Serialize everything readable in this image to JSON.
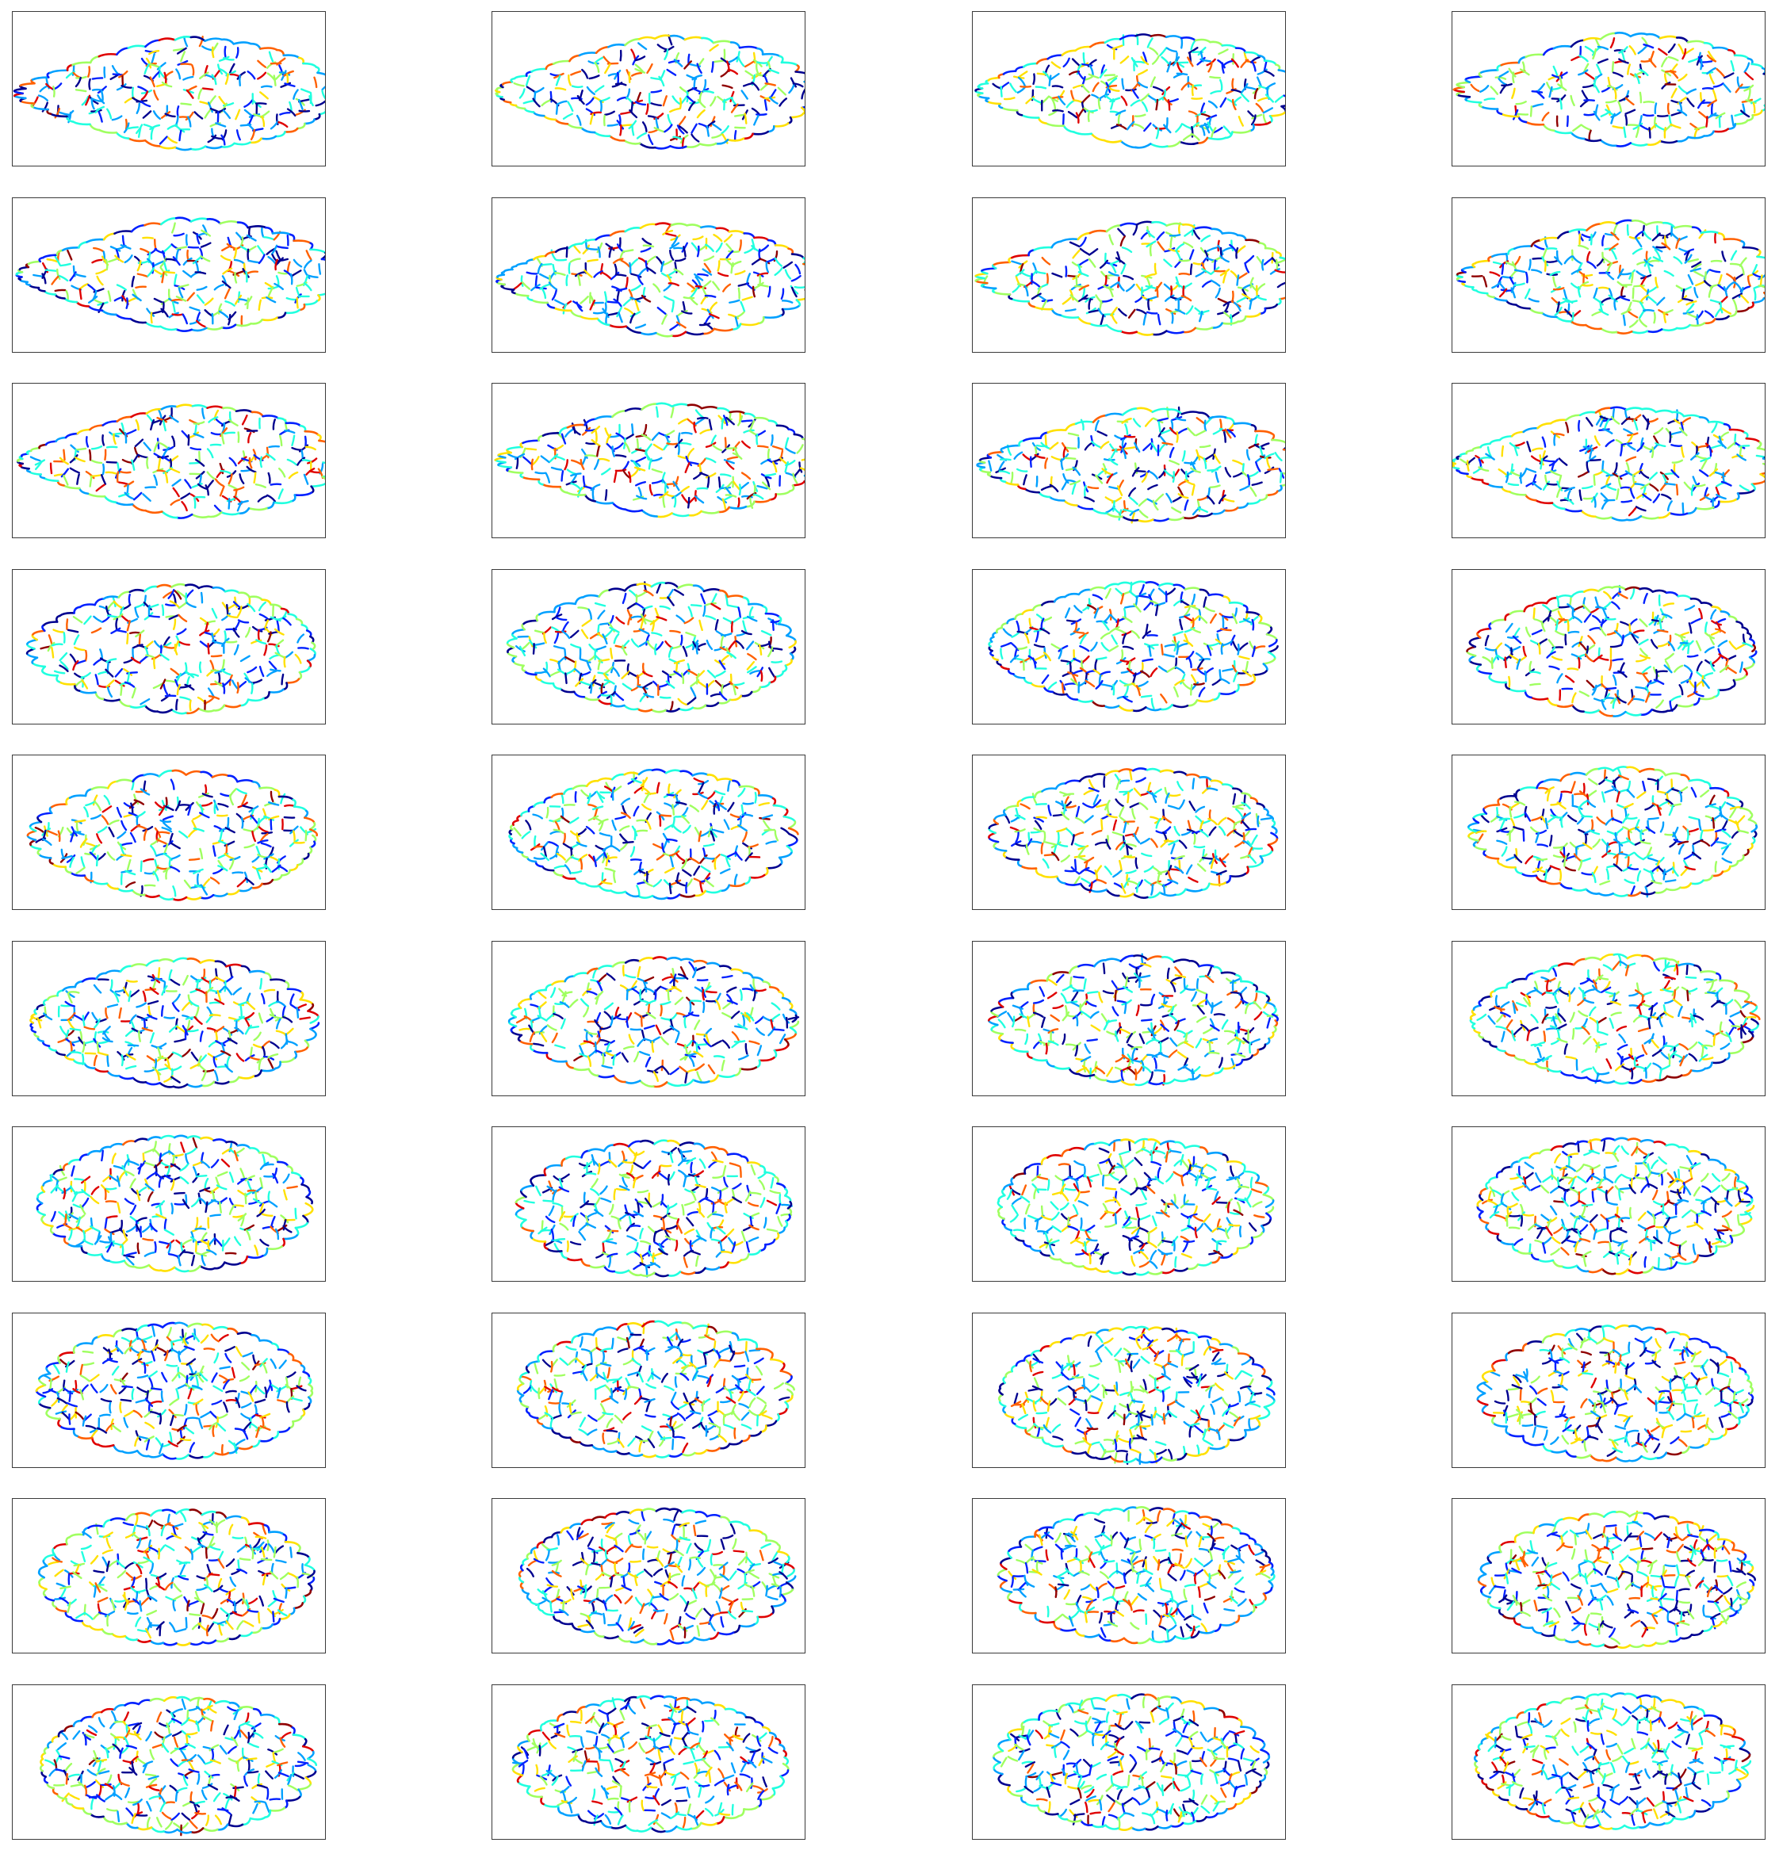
{
  "figure": {
    "rows": 10,
    "cols": 4,
    "colormap": [
      "#00008f",
      "#0020ff",
      "#00a0ff",
      "#20ffdf",
      "#9fff60",
      "#ffe000",
      "#ff6000",
      "#df0000",
      "#8f0000"
    ],
    "panels": [
      {
        "row": 0,
        "col": 0,
        "shape": "elongated",
        "tail": "left"
      },
      {
        "row": 0,
        "col": 1,
        "shape": "elongated",
        "tail": "left"
      },
      {
        "row": 0,
        "col": 2,
        "shape": "elongated",
        "tail": "left"
      },
      {
        "row": 0,
        "col": 3,
        "shape": "elongated",
        "tail": "left"
      },
      {
        "row": 1,
        "col": 0,
        "shape": "elongated",
        "tail": "left"
      },
      {
        "row": 1,
        "col": 1,
        "shape": "elongated",
        "tail": "left"
      },
      {
        "row": 1,
        "col": 2,
        "shape": "elongated",
        "tail": "left"
      },
      {
        "row": 1,
        "col": 3,
        "shape": "elongated",
        "tail": "left"
      },
      {
        "row": 2,
        "col": 0,
        "shape": "elongated",
        "tail": "left"
      },
      {
        "row": 2,
        "col": 1,
        "shape": "elongated",
        "tail": "left"
      },
      {
        "row": 2,
        "col": 2,
        "shape": "elongated",
        "tail": "left"
      },
      {
        "row": 2,
        "col": 3,
        "shape": "elongated",
        "tail": "left"
      },
      {
        "row": 3,
        "col": 0,
        "shape": "ovoid",
        "tail": "left"
      },
      {
        "row": 3,
        "col": 1,
        "shape": "ovoid",
        "tail": "left"
      },
      {
        "row": 3,
        "col": 2,
        "shape": "ovoid",
        "tail": "left"
      },
      {
        "row": 3,
        "col": 3,
        "shape": "ovoid",
        "tail": "left"
      },
      {
        "row": 4,
        "col": 0,
        "shape": "ovoid",
        "tail": "left"
      },
      {
        "row": 4,
        "col": 1,
        "shape": "ovoid",
        "tail": "none"
      },
      {
        "row": 4,
        "col": 2,
        "shape": "ovoid",
        "tail": "none"
      },
      {
        "row": 4,
        "col": 3,
        "shape": "ovoid",
        "tail": "none"
      },
      {
        "row": 5,
        "col": 0,
        "shape": "ovoid",
        "tail": "none"
      },
      {
        "row": 5,
        "col": 1,
        "shape": "ovoid",
        "tail": "none"
      },
      {
        "row": 5,
        "col": 2,
        "shape": "ovoid",
        "tail": "none"
      },
      {
        "row": 5,
        "col": 3,
        "shape": "ovoid",
        "tail": "none"
      },
      {
        "row": 6,
        "col": 0,
        "shape": "ellipse",
        "tail": "none"
      },
      {
        "row": 6,
        "col": 1,
        "shape": "ellipse",
        "tail": "none"
      },
      {
        "row": 6,
        "col": 2,
        "shape": "ellipse",
        "tail": "none"
      },
      {
        "row": 6,
        "col": 3,
        "shape": "ellipse",
        "tail": "none"
      },
      {
        "row": 7,
        "col": 0,
        "shape": "ellipse",
        "tail": "none"
      },
      {
        "row": 7,
        "col": 1,
        "shape": "ellipse",
        "tail": "none"
      },
      {
        "row": 7,
        "col": 2,
        "shape": "ellipse",
        "tail": "none"
      },
      {
        "row": 7,
        "col": 3,
        "shape": "ellipse",
        "tail": "none"
      },
      {
        "row": 8,
        "col": 0,
        "shape": "ellipse",
        "tail": "none"
      },
      {
        "row": 8,
        "col": 1,
        "shape": "ellipse",
        "tail": "none"
      },
      {
        "row": 8,
        "col": 2,
        "shape": "ellipse",
        "tail": "none"
      },
      {
        "row": 8,
        "col": 3,
        "shape": "ellipse",
        "tail": "none"
      },
      {
        "row": 9,
        "col": 0,
        "shape": "ellipse",
        "tail": "none"
      },
      {
        "row": 9,
        "col": 1,
        "shape": "ellipse",
        "tail": "none"
      },
      {
        "row": 9,
        "col": 2,
        "shape": "ellipse",
        "tail": "none"
      },
      {
        "row": 9,
        "col": 3,
        "shape": "ellipse",
        "tail": "none"
      }
    ]
  }
}
